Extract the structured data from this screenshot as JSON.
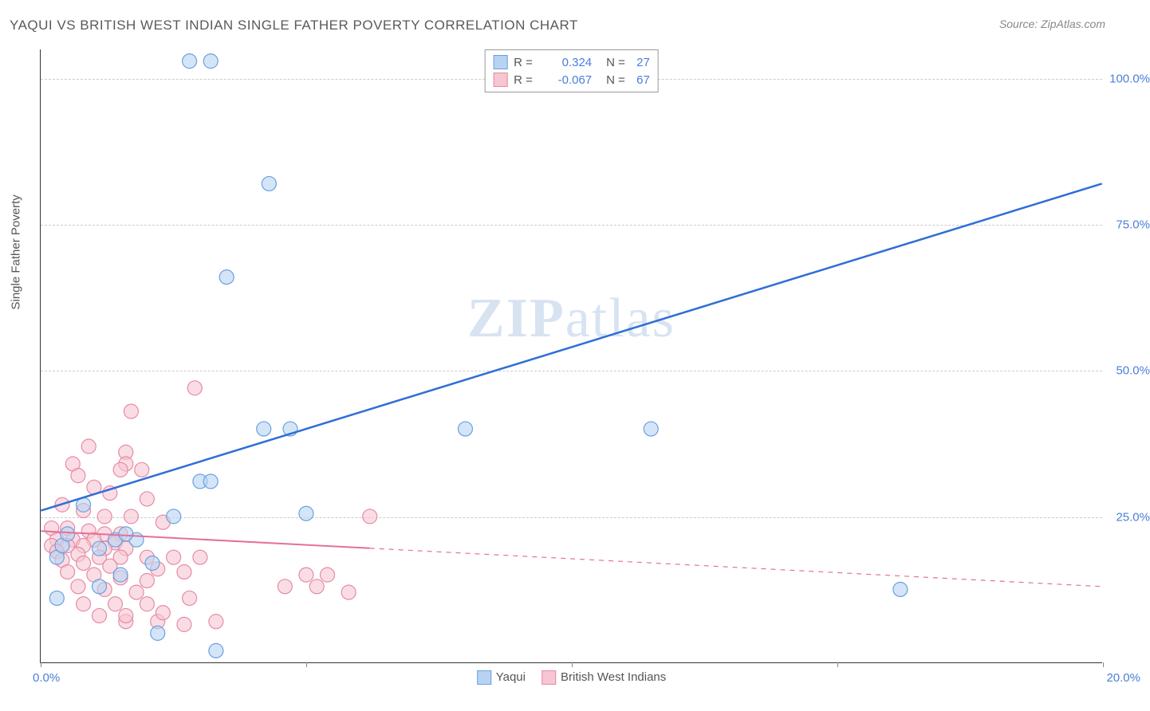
{
  "title": "YAQUI VS BRITISH WEST INDIAN SINGLE FATHER POVERTY CORRELATION CHART",
  "source": "Source: ZipAtlas.com",
  "y_axis_label": "Single Father Poverty",
  "watermark_bold": "ZIP",
  "watermark_rest": "atlas",
  "chart": {
    "type": "scatter",
    "xlim": [
      0,
      20
    ],
    "ylim": [
      0,
      105
    ],
    "background_color": "#ffffff",
    "grid_color": "#cccccc",
    "axis_color": "#333333",
    "xtick_positions": [
      0,
      5,
      10,
      15,
      20
    ],
    "xtick_labels": {
      "0": "0.0%",
      "20": "20.0%"
    },
    "ytick_positions": [
      25,
      50,
      75,
      100
    ],
    "ytick_labels": {
      "25": "25.0%",
      "50": "50.0%",
      "75": "75.0%",
      "100": "100.0%"
    },
    "tick_color": "#4a7fd8",
    "tick_fontsize": 15,
    "series": [
      {
        "name": "Yaqui",
        "color_fill": "#b8d3f2",
        "color_stroke": "#6aa0e0",
        "trend_color": "#2e6fd6",
        "trend_width": 2.5,
        "R": "0.324",
        "N": "27",
        "trend_x_range": [
          0,
          20
        ],
        "trend_y_range": [
          26,
          82
        ],
        "trend_dash_from": 20,
        "marker_radius": 9,
        "points": [
          [
            2.8,
            103
          ],
          [
            3.2,
            103
          ],
          [
            4.3,
            82
          ],
          [
            3.5,
            66
          ],
          [
            4.2,
            40
          ],
          [
            4.7,
            40
          ],
          [
            8.0,
            40
          ],
          [
            5.0,
            25.5
          ],
          [
            3.0,
            31
          ],
          [
            3.2,
            31
          ],
          [
            11.5,
            40
          ],
          [
            16.2,
            12.5
          ],
          [
            3.3,
            2.0
          ],
          [
            2.2,
            5
          ],
          [
            2.5,
            25
          ],
          [
            1.4,
            21
          ],
          [
            1.8,
            21
          ],
          [
            0.8,
            27
          ],
          [
            0.3,
            18
          ],
          [
            0.3,
            11
          ],
          [
            1.1,
            13
          ],
          [
            1.1,
            19.5
          ],
          [
            1.5,
            15
          ],
          [
            2.1,
            17
          ],
          [
            0.4,
            20
          ],
          [
            0.5,
            22
          ],
          [
            1.6,
            22
          ]
        ]
      },
      {
        "name": "British West Indians",
        "color_fill": "#f6c6d2",
        "color_stroke": "#e78aa5",
        "trend_color": "#e47099",
        "trend_width": 2,
        "R": "-0.067",
        "N": "67",
        "trend_x_range": [
          0,
          20
        ],
        "trend_y_range": [
          22.5,
          13
        ],
        "trend_dash_from": 6.2,
        "marker_radius": 9,
        "points": [
          [
            2.9,
            47
          ],
          [
            1.7,
            43
          ],
          [
            0.9,
            37
          ],
          [
            1.6,
            36
          ],
          [
            1.6,
            34
          ],
          [
            0.6,
            34
          ],
          [
            1.5,
            33
          ],
          [
            1.9,
            33
          ],
          [
            0.7,
            32
          ],
          [
            1.0,
            30
          ],
          [
            1.3,
            29
          ],
          [
            2.0,
            28
          ],
          [
            0.4,
            27
          ],
          [
            0.8,
            26
          ],
          [
            1.2,
            25
          ],
          [
            1.7,
            25
          ],
          [
            6.2,
            25
          ],
          [
            2.3,
            24
          ],
          [
            0.2,
            23
          ],
          [
            0.5,
            23
          ],
          [
            0.9,
            22.5
          ],
          [
            1.2,
            22
          ],
          [
            1.5,
            22
          ],
          [
            0.3,
            21
          ],
          [
            0.6,
            21
          ],
          [
            1.0,
            21
          ],
          [
            1.4,
            20.5
          ],
          [
            0.2,
            20
          ],
          [
            0.5,
            20
          ],
          [
            0.8,
            20
          ],
          [
            1.2,
            19.5
          ],
          [
            1.6,
            19.5
          ],
          [
            0.3,
            19
          ],
          [
            0.7,
            18.5
          ],
          [
            1.1,
            18
          ],
          [
            1.5,
            18
          ],
          [
            2.0,
            18
          ],
          [
            2.5,
            18
          ],
          [
            3.0,
            18
          ],
          [
            0.4,
            17.5
          ],
          [
            0.8,
            17
          ],
          [
            1.3,
            16.5
          ],
          [
            2.2,
            16
          ],
          [
            2.7,
            15.5
          ],
          [
            0.5,
            15.5
          ],
          [
            1.0,
            15
          ],
          [
            1.5,
            14.5
          ],
          [
            2.0,
            14
          ],
          [
            5.0,
            15
          ],
          [
            5.4,
            15
          ],
          [
            4.6,
            13
          ],
          [
            5.2,
            13
          ],
          [
            5.8,
            12
          ],
          [
            0.7,
            13
          ],
          [
            1.2,
            12.5
          ],
          [
            1.8,
            12
          ],
          [
            1.6,
            7
          ],
          [
            2.2,
            7
          ],
          [
            2.7,
            6.5
          ],
          [
            3.3,
            7
          ],
          [
            1.1,
            8
          ],
          [
            1.6,
            8
          ],
          [
            2.3,
            8.5
          ],
          [
            0.8,
            10
          ],
          [
            1.4,
            10
          ],
          [
            2.0,
            10
          ],
          [
            2.8,
            11
          ]
        ]
      }
    ]
  },
  "legend_top": {
    "r_label": "R =",
    "n_label": "N ="
  },
  "legend_bottom_labels": [
    "Yaqui",
    "British West Indians"
  ]
}
